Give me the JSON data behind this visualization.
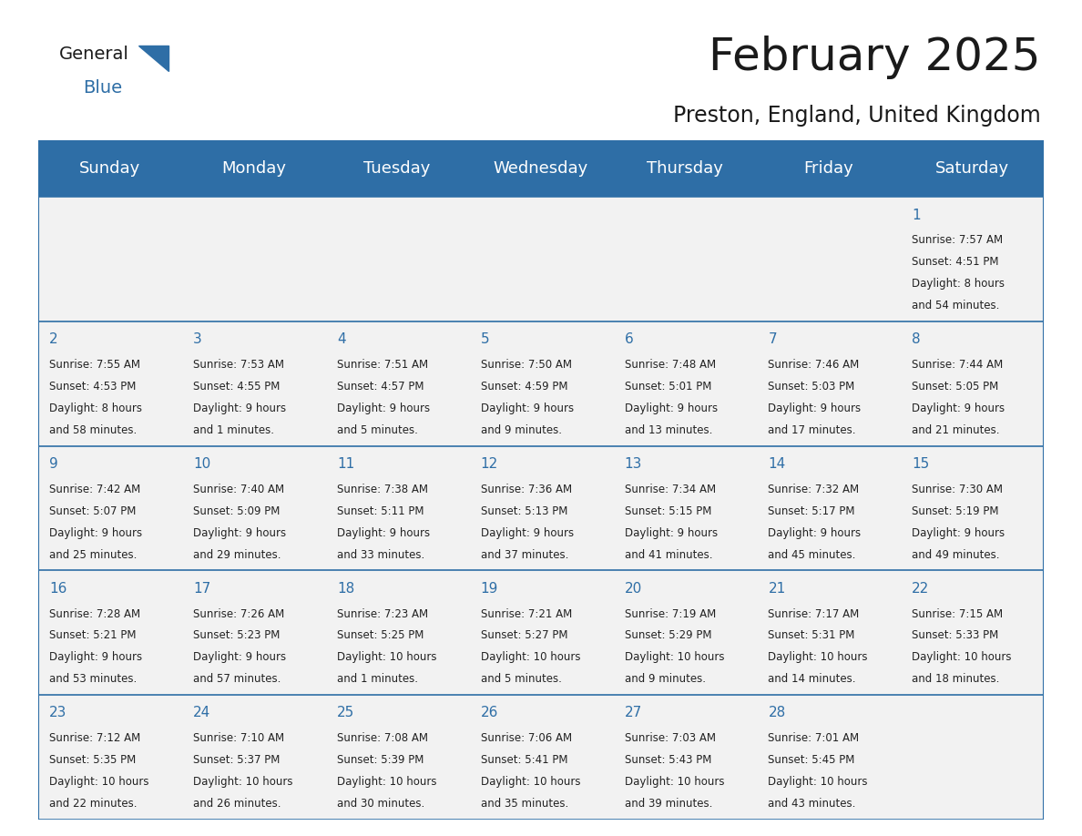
{
  "title": "February 2025",
  "subtitle": "Preston, England, United Kingdom",
  "header_bg": "#2E6EA6",
  "header_text_color": "#FFFFFF",
  "day_names": [
    "Sunday",
    "Monday",
    "Tuesday",
    "Wednesday",
    "Thursday",
    "Friday",
    "Saturday"
  ],
  "cell_bg": "#F2F2F2",
  "grid_line_color": "#2E6EA6",
  "date_color": "#2E6EA6",
  "info_color": "#222222",
  "title_fontsize": 36,
  "subtitle_fontsize": 17,
  "header_fontsize": 13,
  "date_fontsize": 11,
  "info_fontsize": 8.5,
  "logo_general_color": "#1a1a1a",
  "logo_blue_color": "#2E6EA6",
  "logo_triangle_color": "#2E6EA6",
  "days": [
    {
      "date": 1,
      "row": 0,
      "col": 6,
      "sunrise": "7:57 AM",
      "sunset": "4:51 PM",
      "daylight_hours": 8,
      "daylight_minutes": 54
    },
    {
      "date": 2,
      "row": 1,
      "col": 0,
      "sunrise": "7:55 AM",
      "sunset": "4:53 PM",
      "daylight_hours": 8,
      "daylight_minutes": 58
    },
    {
      "date": 3,
      "row": 1,
      "col": 1,
      "sunrise": "7:53 AM",
      "sunset": "4:55 PM",
      "daylight_hours": 9,
      "daylight_minutes": 1
    },
    {
      "date": 4,
      "row": 1,
      "col": 2,
      "sunrise": "7:51 AM",
      "sunset": "4:57 PM",
      "daylight_hours": 9,
      "daylight_minutes": 5
    },
    {
      "date": 5,
      "row": 1,
      "col": 3,
      "sunrise": "7:50 AM",
      "sunset": "4:59 PM",
      "daylight_hours": 9,
      "daylight_minutes": 9
    },
    {
      "date": 6,
      "row": 1,
      "col": 4,
      "sunrise": "7:48 AM",
      "sunset": "5:01 PM",
      "daylight_hours": 9,
      "daylight_minutes": 13
    },
    {
      "date": 7,
      "row": 1,
      "col": 5,
      "sunrise": "7:46 AM",
      "sunset": "5:03 PM",
      "daylight_hours": 9,
      "daylight_minutes": 17
    },
    {
      "date": 8,
      "row": 1,
      "col": 6,
      "sunrise": "7:44 AM",
      "sunset": "5:05 PM",
      "daylight_hours": 9,
      "daylight_minutes": 21
    },
    {
      "date": 9,
      "row": 2,
      "col": 0,
      "sunrise": "7:42 AM",
      "sunset": "5:07 PM",
      "daylight_hours": 9,
      "daylight_minutes": 25
    },
    {
      "date": 10,
      "row": 2,
      "col": 1,
      "sunrise": "7:40 AM",
      "sunset": "5:09 PM",
      "daylight_hours": 9,
      "daylight_minutes": 29
    },
    {
      "date": 11,
      "row": 2,
      "col": 2,
      "sunrise": "7:38 AM",
      "sunset": "5:11 PM",
      "daylight_hours": 9,
      "daylight_minutes": 33
    },
    {
      "date": 12,
      "row": 2,
      "col": 3,
      "sunrise": "7:36 AM",
      "sunset": "5:13 PM",
      "daylight_hours": 9,
      "daylight_minutes": 37
    },
    {
      "date": 13,
      "row": 2,
      "col": 4,
      "sunrise": "7:34 AM",
      "sunset": "5:15 PM",
      "daylight_hours": 9,
      "daylight_minutes": 41
    },
    {
      "date": 14,
      "row": 2,
      "col": 5,
      "sunrise": "7:32 AM",
      "sunset": "5:17 PM",
      "daylight_hours": 9,
      "daylight_minutes": 45
    },
    {
      "date": 15,
      "row": 2,
      "col": 6,
      "sunrise": "7:30 AM",
      "sunset": "5:19 PM",
      "daylight_hours": 9,
      "daylight_minutes": 49
    },
    {
      "date": 16,
      "row": 3,
      "col": 0,
      "sunrise": "7:28 AM",
      "sunset": "5:21 PM",
      "daylight_hours": 9,
      "daylight_minutes": 53
    },
    {
      "date": 17,
      "row": 3,
      "col": 1,
      "sunrise": "7:26 AM",
      "sunset": "5:23 PM",
      "daylight_hours": 9,
      "daylight_minutes": 57
    },
    {
      "date": 18,
      "row": 3,
      "col": 2,
      "sunrise": "7:23 AM",
      "sunset": "5:25 PM",
      "daylight_hours": 10,
      "daylight_minutes": 1
    },
    {
      "date": 19,
      "row": 3,
      "col": 3,
      "sunrise": "7:21 AM",
      "sunset": "5:27 PM",
      "daylight_hours": 10,
      "daylight_minutes": 5
    },
    {
      "date": 20,
      "row": 3,
      "col": 4,
      "sunrise": "7:19 AM",
      "sunset": "5:29 PM",
      "daylight_hours": 10,
      "daylight_minutes": 9
    },
    {
      "date": 21,
      "row": 3,
      "col": 5,
      "sunrise": "7:17 AM",
      "sunset": "5:31 PM",
      "daylight_hours": 10,
      "daylight_minutes": 14
    },
    {
      "date": 22,
      "row": 3,
      "col": 6,
      "sunrise": "7:15 AM",
      "sunset": "5:33 PM",
      "daylight_hours": 10,
      "daylight_minutes": 18
    },
    {
      "date": 23,
      "row": 4,
      "col": 0,
      "sunrise": "7:12 AM",
      "sunset": "5:35 PM",
      "daylight_hours": 10,
      "daylight_minutes": 22
    },
    {
      "date": 24,
      "row": 4,
      "col": 1,
      "sunrise": "7:10 AM",
      "sunset": "5:37 PM",
      "daylight_hours": 10,
      "daylight_minutes": 26
    },
    {
      "date": 25,
      "row": 4,
      "col": 2,
      "sunrise": "7:08 AM",
      "sunset": "5:39 PM",
      "daylight_hours": 10,
      "daylight_minutes": 30
    },
    {
      "date": 26,
      "row": 4,
      "col": 3,
      "sunrise": "7:06 AM",
      "sunset": "5:41 PM",
      "daylight_hours": 10,
      "daylight_minutes": 35
    },
    {
      "date": 27,
      "row": 4,
      "col": 4,
      "sunrise": "7:03 AM",
      "sunset": "5:43 PM",
      "daylight_hours": 10,
      "daylight_minutes": 39
    },
    {
      "date": 28,
      "row": 4,
      "col": 5,
      "sunrise": "7:01 AM",
      "sunset": "5:45 PM",
      "daylight_hours": 10,
      "daylight_minutes": 43
    }
  ]
}
